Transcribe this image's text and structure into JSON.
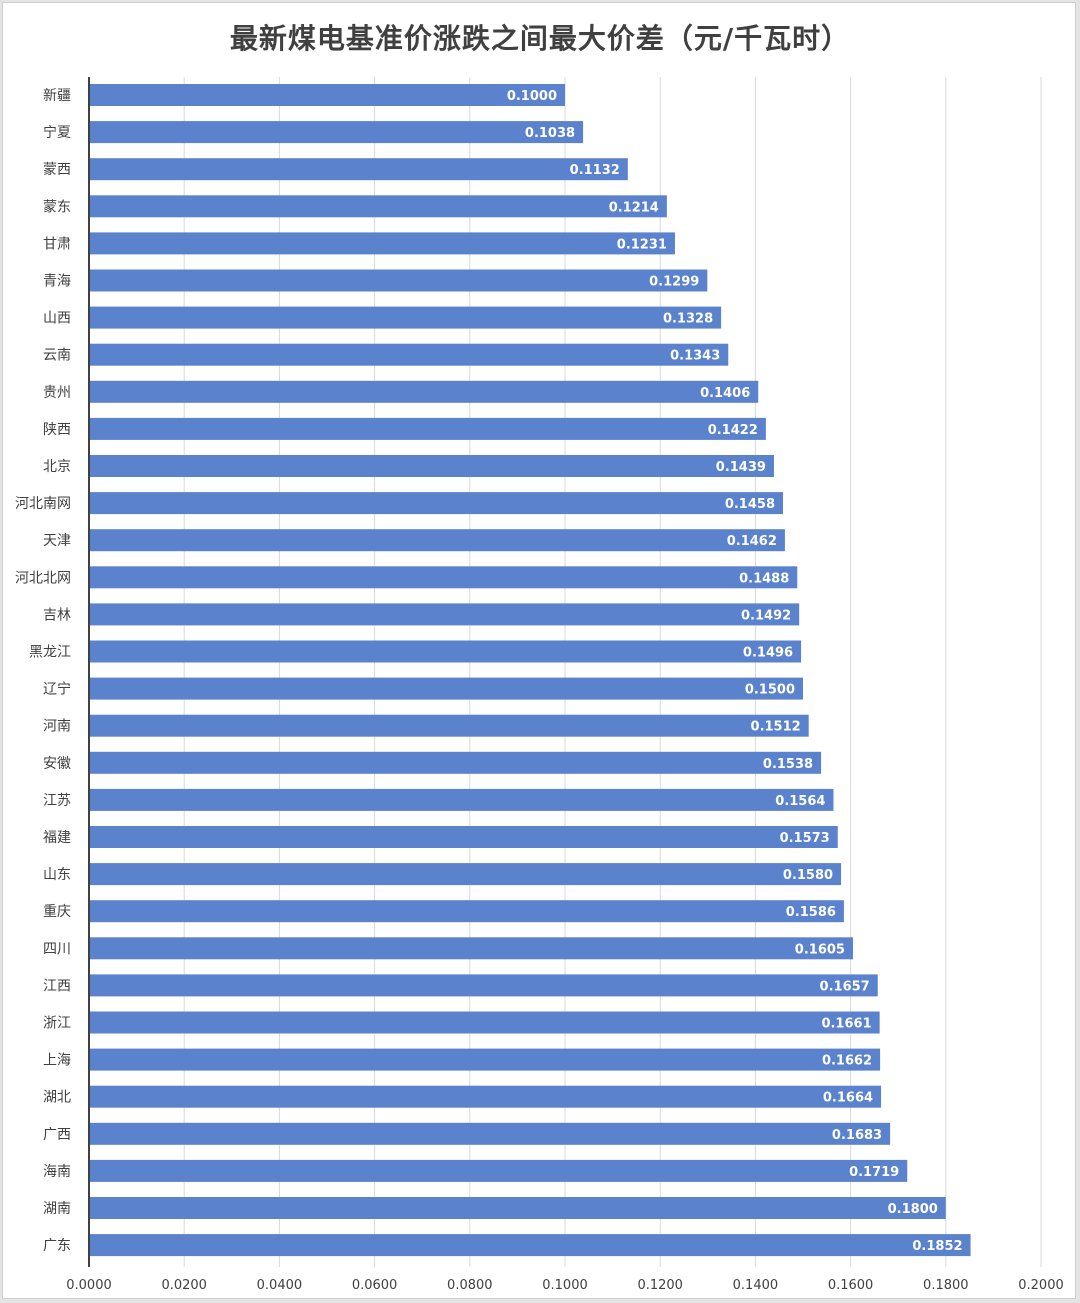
{
  "chart_data": {
    "type": "bar",
    "orientation": "horizontal",
    "title": "最新煤电基准价涨跌之间最大价差（元/千瓦时）",
    "categories": [
      "新疆",
      "宁夏",
      "蒙西",
      "蒙东",
      "甘肃",
      "青海",
      "山西",
      "云南",
      "贵州",
      "陕西",
      "北京",
      "河北南网",
      "天津",
      "河北北网",
      "吉林",
      "黑龙江",
      "辽宁",
      "河南",
      "安徽",
      "江苏",
      "福建",
      "山东",
      "重庆",
      "四川",
      "江西",
      "浙江",
      "上海",
      "湖北",
      "广西",
      "海南",
      "湖南",
      "广东"
    ],
    "values": [
      0.1,
      0.1038,
      0.1132,
      0.1214,
      0.1231,
      0.1299,
      0.1328,
      0.1343,
      0.1406,
      0.1422,
      0.1439,
      0.1458,
      0.1462,
      0.1488,
      0.1492,
      0.1496,
      0.15,
      0.1512,
      0.1538,
      0.1564,
      0.1573,
      0.158,
      0.1586,
      0.1605,
      0.1657,
      0.1661,
      0.1662,
      0.1664,
      0.1683,
      0.1719,
      0.18,
      0.1852
    ],
    "value_labels": [
      "0.1000",
      "0.1038",
      "0.1132",
      "0.1214",
      "0.1231",
      "0.1299",
      "0.1328",
      "0.1343",
      "0.1406",
      "0.1422",
      "0.1439",
      "0.1458",
      "0.1462",
      "0.1488",
      "0.1492",
      "0.1496",
      "0.1500",
      "0.1512",
      "0.1538",
      "0.1564",
      "0.1573",
      "0.1580",
      "0.1586",
      "0.1605",
      "0.1657",
      "0.1661",
      "0.1662",
      "0.1664",
      "0.1683",
      "0.1719",
      "0.1800",
      "0.1852"
    ],
    "xlim": [
      0,
      0.2
    ],
    "x_ticks": [
      0,
      0.02,
      0.04,
      0.06,
      0.08,
      0.1,
      0.12,
      0.14,
      0.16,
      0.18,
      0.2
    ],
    "x_tick_labels": [
      "0.0000",
      "0.0200",
      "0.0400",
      "0.0600",
      "0.0800",
      "0.1000",
      "0.1200",
      "0.1400",
      "0.1600",
      "0.1800",
      "0.2000"
    ],
    "grid": true,
    "bar_color": "#5b82cc",
    "label_color": "#ffffff",
    "grid_color": "#d9d9d9",
    "axis_color": "#404040",
    "text_color": "#404040"
  }
}
